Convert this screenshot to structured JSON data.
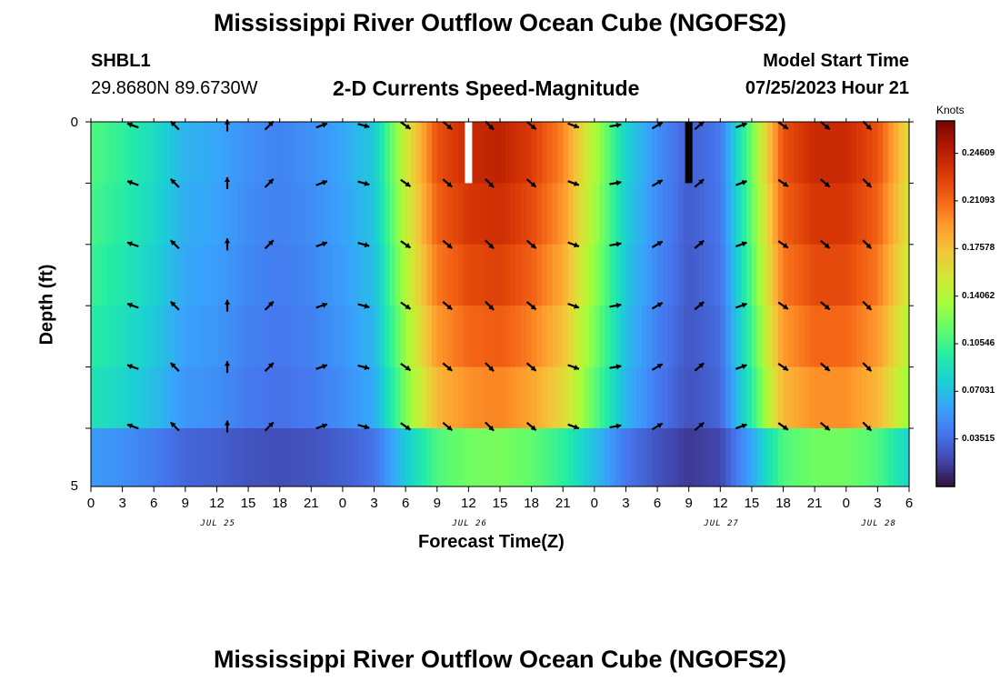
{
  "title": "Mississippi River Outflow Ocean Cube (NGOFS2)",
  "title_repeat": "Mississippi River Outflow Ocean Cube (NGOFS2)",
  "station": {
    "name": "SHBL1",
    "coords": "29.8680N  89.6730W"
  },
  "model_start": {
    "label": "Model Start Time",
    "value": "07/25/2023 Hour 21"
  },
  "chart_data": {
    "type": "heatmap",
    "title": "2-D Currents Speed-Magnitude",
    "xlabel": "Forecast Time(Z)",
    "ylabel": "Depth (ft)",
    "ylim": [
      0,
      5
    ],
    "y_tick_labels": [
      "0",
      "5"
    ],
    "x_tick_labels": [
      "0",
      "3",
      "6",
      "9",
      "12",
      "15",
      "18",
      "21",
      "0",
      "3",
      "6",
      "9",
      "12",
      "15",
      "18",
      "21",
      "0",
      "3",
      "6",
      "9",
      "12",
      "15",
      "18",
      "21",
      "0",
      "3",
      "6"
    ],
    "x_range_hours": [
      0,
      78
    ],
    "date_labels": [
      {
        "text": "JUL 25",
        "hour": 12
      },
      {
        "text": "JUL 26",
        "hour": 36
      },
      {
        "text": "JUL 27",
        "hour": 60
      },
      {
        "text": "JUL 28",
        "hour": 75
      }
    ],
    "colorbar": {
      "unit": "Knots",
      "tick_labels": [
        "0.24609",
        "0.21093",
        "0.17578",
        "0.14062",
        "0.10546",
        "0.07031",
        "0.03515"
      ],
      "tick_values": [
        0.24609,
        0.21093,
        0.17578,
        0.14062,
        0.10546,
        0.07031,
        0.03515
      ],
      "range": [
        0.0,
        0.27
      ],
      "colors": [
        "#30123b",
        "#4145ab",
        "#4675ed",
        "#39a2fc",
        "#1bcfd4",
        "#24eca6",
        "#61fc6c",
        "#a4fc3b",
        "#d1e834",
        "#f3c63a",
        "#fe9b2d",
        "#f36315",
        "#d93806",
        "#b11901",
        "#7a0403"
      ]
    },
    "depth_layers": 6,
    "time_nodes_hours": [
      0,
      3,
      6,
      9,
      12,
      15,
      18,
      21,
      24,
      27,
      30,
      33,
      36,
      39,
      42,
      45,
      48,
      51,
      54,
      57,
      60,
      63,
      66,
      69,
      72,
      75,
      78
    ],
    "speed_profile": [
      0.11,
      0.1,
      0.085,
      0.065,
      0.06,
      0.05,
      0.045,
      0.05,
      0.06,
      0.075,
      0.15,
      0.22,
      0.24,
      0.245,
      0.23,
      0.2,
      0.14,
      0.08,
      0.05,
      0.03,
      0.04,
      0.12,
      0.22,
      0.24,
      0.24,
      0.22,
      0.16
    ],
    "layer_factors": [
      1.0,
      0.97,
      0.93,
      0.88,
      0.82,
      0.5
    ],
    "no_data_cells": [
      {
        "hour": 36,
        "layer": 0,
        "fill": "#ffffff"
      },
      {
        "hour": 57,
        "layer": 0,
        "fill": "#000000"
      }
    ],
    "vector_layers": [
      0,
      1,
      2,
      3,
      4,
      5
    ],
    "vector_hours": [
      4,
      8,
      13,
      17,
      22,
      26,
      30,
      34,
      38,
      42,
      46,
      50,
      54,
      58,
      62,
      66,
      70,
      74
    ],
    "vector_directions_deg": [
      160,
      135,
      90,
      45,
      20,
      -15,
      -35,
      -40,
      -45,
      -40,
      -20,
      10,
      30,
      40,
      20,
      -35,
      -40,
      -45
    ]
  }
}
